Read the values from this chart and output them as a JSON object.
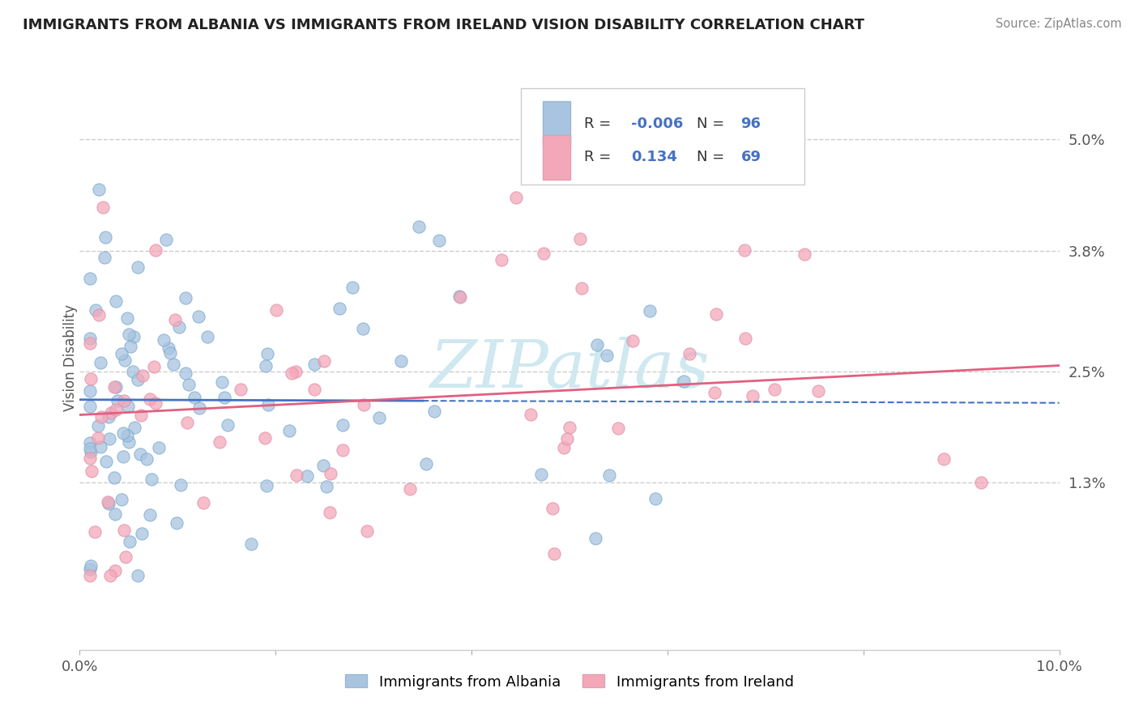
{
  "title": "IMMIGRANTS FROM ALBANIA VS IMMIGRANTS FROM IRELAND VISION DISABILITY CORRELATION CHART",
  "source": "Source: ZipAtlas.com",
  "ylabel": "Vision Disability",
  "xlim": [
    0.0,
    0.1
  ],
  "ylim": [
    -0.005,
    0.058
  ],
  "xticks": [
    0.0,
    0.02,
    0.04,
    0.06,
    0.08,
    0.1
  ],
  "xticklabels": [
    "0.0%",
    "",
    "",
    "",
    "",
    "10.0%"
  ],
  "ytick_positions": [
    0.013,
    0.025,
    0.038,
    0.05
  ],
  "ytick_labels": [
    "1.3%",
    "2.5%",
    "3.8%",
    "5.0%"
  ],
  "legend_r1": "-0.006",
  "legend_n1": "96",
  "legend_r2": "0.134",
  "legend_n2": "69",
  "color_albania": "#a8c4e0",
  "color_ireland": "#f4a7b9",
  "line_color_albania": "#4472c4",
  "line_color_ireland": "#e06080",
  "alb_line_x_end": 0.035,
  "ire_line_x_end": 0.1,
  "alb_line_y_start": 0.022,
  "alb_line_y_end": 0.022,
  "ire_line_x_start": 0.0,
  "ire_line_y_start": 0.018,
  "ire_line_y_end": 0.027
}
